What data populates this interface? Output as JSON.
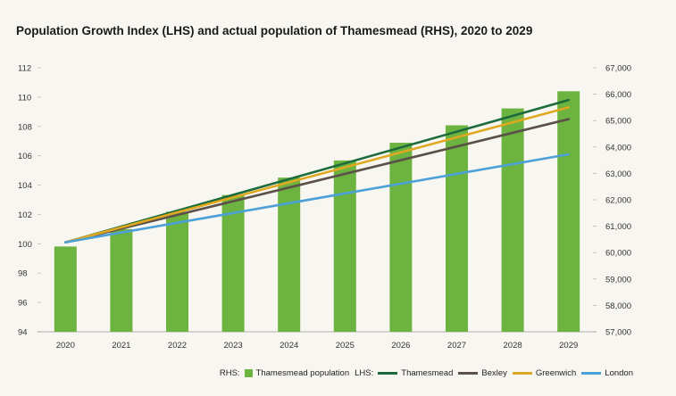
{
  "chart_data": {
    "type": "bar+line",
    "title": "Population Growth Index (LHS) and actual population of Thamesmead (RHS), 2020 to 2029",
    "categories": [
      "2020",
      "2021",
      "2022",
      "2023",
      "2024",
      "2025",
      "2026",
      "2027",
      "2028",
      "2029"
    ],
    "left_axis": {
      "min": 94,
      "max": 112,
      "ticks": [
        "94",
        "96",
        "98",
        "100",
        "102",
        "104",
        "106",
        "108",
        "110",
        "112"
      ]
    },
    "right_axis": {
      "min": 57000,
      "max": 67000,
      "ticks": [
        "57,000",
        "58,000",
        "59,000",
        "60,000",
        "61,000",
        "62,000",
        "63,000",
        "64,000",
        "65,000",
        "66,000",
        "67,000"
      ]
    },
    "bars": {
      "name": "Thamesmead population",
      "axis": "right",
      "color": "#6cb33f",
      "values": [
        60230,
        60890,
        61550,
        62180,
        62840,
        63490,
        64160,
        64820,
        65460,
        66110
      ]
    },
    "lines": [
      {
        "name": "Thamesmead",
        "axis": "left",
        "color": "#1c6b3a",
        "start": 100.1,
        "end": 109.8
      },
      {
        "name": "Bexley",
        "axis": "left",
        "color": "#5b5149",
        "start": 100.1,
        "end": 108.5
      },
      {
        "name": "Greenwich",
        "axis": "left",
        "color": "#e0a820",
        "start": 100.1,
        "end": 109.3
      },
      {
        "name": "London",
        "axis": "left",
        "color": "#4ca0d8",
        "start": 100.1,
        "end": 106.1
      }
    ]
  },
  "legend": {
    "rhs_label": "RHS:",
    "lhs_label": "LHS:",
    "bar_label": "Thamesmead population",
    "line_labels": [
      "Thamesmead",
      "Bexley",
      "Greenwich",
      "London"
    ]
  }
}
